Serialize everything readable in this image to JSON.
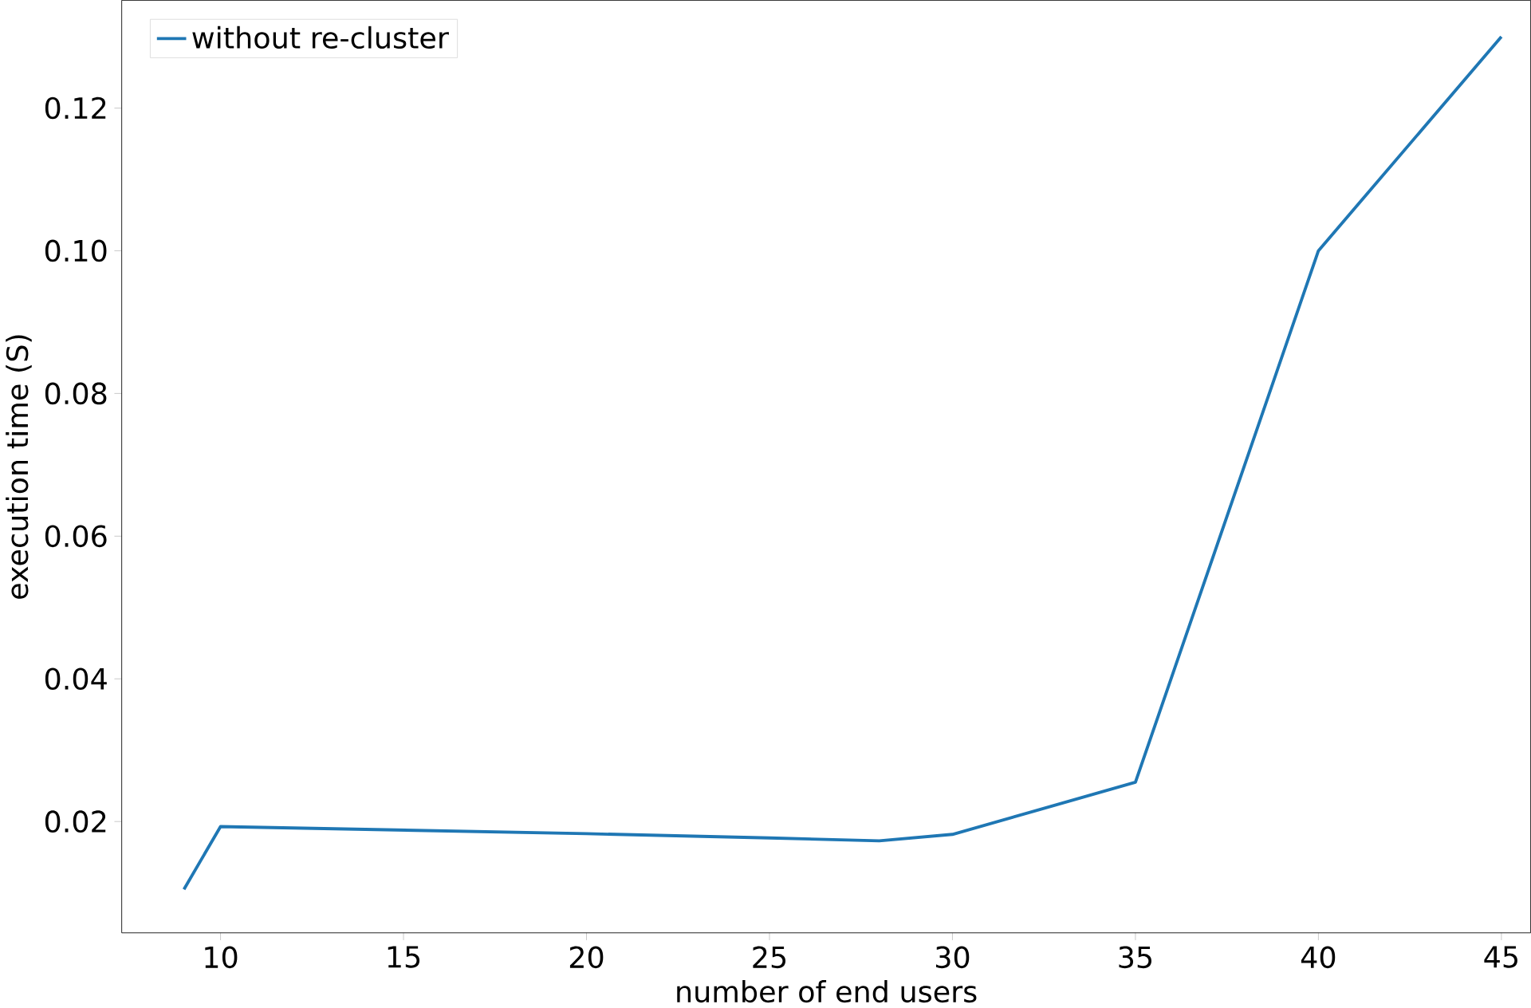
{
  "chart_data": {
    "type": "line",
    "xlabel": "number of end users",
    "ylabel": "execution time (S)",
    "x": [
      9,
      10,
      15,
      20,
      25,
      28,
      30,
      35,
      40,
      45
    ],
    "series": [
      {
        "name": "without re-cluster",
        "color": "#1f77b4",
        "values": [
          0.0105,
          0.0193,
          0.0188,
          0.0183,
          0.0177,
          0.0173,
          0.0182,
          0.0255,
          0.1,
          0.13
        ]
      }
    ],
    "xlim": [
      7.3,
      45.8
    ],
    "ylim": [
      0.0044,
      0.1351
    ],
    "xticks": [
      10,
      15,
      20,
      25,
      30,
      35,
      40,
      45
    ],
    "yticks": [
      {
        "value": 0.02,
        "label": "0.02"
      },
      {
        "value": 0.04,
        "label": "0.04"
      },
      {
        "value": 0.06,
        "label": "0.06"
      },
      {
        "value": 0.08,
        "label": "0.08"
      },
      {
        "value": 0.1,
        "label": "0.10"
      },
      {
        "value": 0.12,
        "label": "0.12"
      }
    ],
    "legend": "top left",
    "grid": false,
    "marker": "none",
    "line_style": "solid"
  }
}
